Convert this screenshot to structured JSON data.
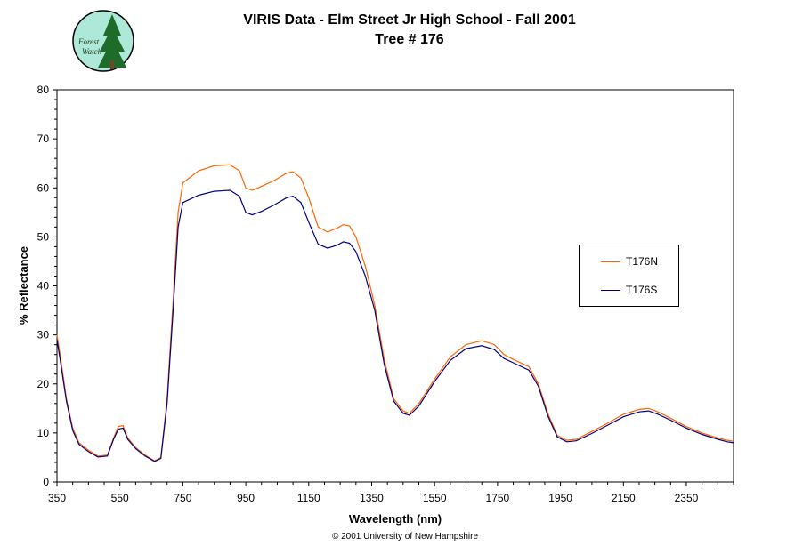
{
  "header": {
    "title": "VIRIS Data - Elm Street Jr High School - Fall 2001",
    "subtitle": "Tree # 176"
  },
  "logo": {
    "line1": "Forest",
    "line2": "Watch"
  },
  "footer": {
    "text": "© 2001 University of New Hampshire"
  },
  "chart_data": {
    "type": "line",
    "title": "VIRIS Data - Elm Street Jr High School - Fall 2001",
    "subtitle": "Tree # 176",
    "xlabel": "Wavelength (nm)",
    "ylabel": "% Reflectance",
    "xlim": [
      350,
      2500
    ],
    "ylim": [
      0,
      80
    ],
    "xticks": [
      350,
      550,
      750,
      950,
      1150,
      1350,
      1550,
      1750,
      1950,
      2150,
      2350
    ],
    "yticks": [
      0,
      10,
      20,
      30,
      40,
      50,
      60,
      70,
      80
    ],
    "grid": false,
    "legend_position": "right",
    "series": [
      {
        "name": "T176N",
        "color": "#ff6600",
        "points": [
          [
            350,
            30
          ],
          [
            360,
            26
          ],
          [
            380,
            17
          ],
          [
            400,
            11
          ],
          [
            420,
            8
          ],
          [
            450,
            6.5
          ],
          [
            480,
            5.3
          ],
          [
            510,
            5.5
          ],
          [
            530,
            9
          ],
          [
            545,
            11.3
          ],
          [
            560,
            11.5
          ],
          [
            575,
            9
          ],
          [
            600,
            7
          ],
          [
            630,
            5.5
          ],
          [
            660,
            4.3
          ],
          [
            680,
            5
          ],
          [
            700,
            17
          ],
          [
            720,
            38
          ],
          [
            735,
            55
          ],
          [
            750,
            61
          ],
          [
            800,
            63.5
          ],
          [
            850,
            64.5
          ],
          [
            900,
            64.7
          ],
          [
            930,
            63.5
          ],
          [
            950,
            60
          ],
          [
            970,
            59.5
          ],
          [
            1000,
            60.3
          ],
          [
            1040,
            61.5
          ],
          [
            1080,
            63
          ],
          [
            1100,
            63.3
          ],
          [
            1125,
            62
          ],
          [
            1150,
            58
          ],
          [
            1180,
            52
          ],
          [
            1210,
            51
          ],
          [
            1240,
            51.8
          ],
          [
            1260,
            52.5
          ],
          [
            1280,
            52.2
          ],
          [
            1300,
            50
          ],
          [
            1330,
            44
          ],
          [
            1360,
            36
          ],
          [
            1390,
            25
          ],
          [
            1420,
            17
          ],
          [
            1450,
            14.5
          ],
          [
            1470,
            14
          ],
          [
            1500,
            16
          ],
          [
            1550,
            21
          ],
          [
            1600,
            25.5
          ],
          [
            1650,
            28
          ],
          [
            1700,
            28.8
          ],
          [
            1740,
            28
          ],
          [
            1770,
            26
          ],
          [
            1800,
            25
          ],
          [
            1850,
            23.5
          ],
          [
            1880,
            20
          ],
          [
            1910,
            14
          ],
          [
            1940,
            9.5
          ],
          [
            1970,
            8.5
          ],
          [
            2000,
            8.7
          ],
          [
            2050,
            10.3
          ],
          [
            2100,
            12
          ],
          [
            2150,
            13.8
          ],
          [
            2200,
            14.8
          ],
          [
            2230,
            15
          ],
          [
            2260,
            14.3
          ],
          [
            2300,
            13
          ],
          [
            2350,
            11.3
          ],
          [
            2400,
            10
          ],
          [
            2450,
            9
          ],
          [
            2480,
            8.5
          ],
          [
            2500,
            8.3
          ]
        ]
      },
      {
        "name": "T176S",
        "color": "#000080",
        "points": [
          [
            350,
            29
          ],
          [
            360,
            25
          ],
          [
            380,
            16.5
          ],
          [
            400,
            10.5
          ],
          [
            420,
            7.7
          ],
          [
            450,
            6.2
          ],
          [
            480,
            5.1
          ],
          [
            510,
            5.3
          ],
          [
            530,
            8.7
          ],
          [
            545,
            10.8
          ],
          [
            560,
            11
          ],
          [
            575,
            8.7
          ],
          [
            600,
            6.8
          ],
          [
            630,
            5.3
          ],
          [
            660,
            4.2
          ],
          [
            680,
            4.8
          ],
          [
            700,
            16
          ],
          [
            720,
            36
          ],
          [
            735,
            52
          ],
          [
            750,
            57
          ],
          [
            800,
            58.5
          ],
          [
            850,
            59.3
          ],
          [
            900,
            59.5
          ],
          [
            930,
            58.3
          ],
          [
            950,
            55
          ],
          [
            970,
            54.5
          ],
          [
            1000,
            55.2
          ],
          [
            1040,
            56.5
          ],
          [
            1080,
            58
          ],
          [
            1100,
            58.3
          ],
          [
            1125,
            57
          ],
          [
            1150,
            53
          ],
          [
            1180,
            48.5
          ],
          [
            1210,
            47.7
          ],
          [
            1240,
            48.3
          ],
          [
            1260,
            49
          ],
          [
            1280,
            48.7
          ],
          [
            1300,
            47
          ],
          [
            1330,
            42
          ],
          [
            1360,
            35
          ],
          [
            1390,
            24
          ],
          [
            1420,
            16.5
          ],
          [
            1450,
            14
          ],
          [
            1470,
            13.6
          ],
          [
            1500,
            15.5
          ],
          [
            1550,
            20.5
          ],
          [
            1600,
            24.8
          ],
          [
            1650,
            27.2
          ],
          [
            1700,
            27.8
          ],
          [
            1740,
            27
          ],
          [
            1770,
            25.2
          ],
          [
            1800,
            24.3
          ],
          [
            1850,
            22.8
          ],
          [
            1880,
            19.5
          ],
          [
            1910,
            13.5
          ],
          [
            1940,
            9.2
          ],
          [
            1970,
            8.2
          ],
          [
            2000,
            8.4
          ],
          [
            2050,
            9.9
          ],
          [
            2100,
            11.6
          ],
          [
            2150,
            13.3
          ],
          [
            2200,
            14.3
          ],
          [
            2230,
            14.5
          ],
          [
            2260,
            13.8
          ],
          [
            2300,
            12.6
          ],
          [
            2350,
            11
          ],
          [
            2400,
            9.7
          ],
          [
            2450,
            8.7
          ],
          [
            2480,
            8.2
          ],
          [
            2500,
            8
          ]
        ]
      }
    ]
  }
}
